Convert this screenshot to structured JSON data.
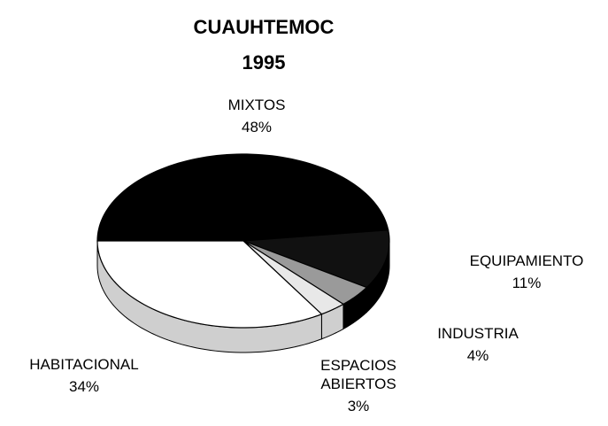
{
  "chart_data": {
    "type": "pie",
    "title": "CUAUHTEMOC",
    "subtitle": "1995",
    "categories": [
      "MIXTOS",
      "EQUIPAMIENTO",
      "INDUSTRIA",
      "ESPACIOS ABIERTOS",
      "HABITACIONAL"
    ],
    "values": [
      48,
      11,
      4,
      3,
      34
    ],
    "value_labels": [
      "48%",
      "11%",
      "4%",
      "3%",
      "34%"
    ],
    "colors": [
      "#000000",
      "#111111",
      "#9a9a9a",
      "#e8e8e8",
      "#ffffff"
    ]
  }
}
